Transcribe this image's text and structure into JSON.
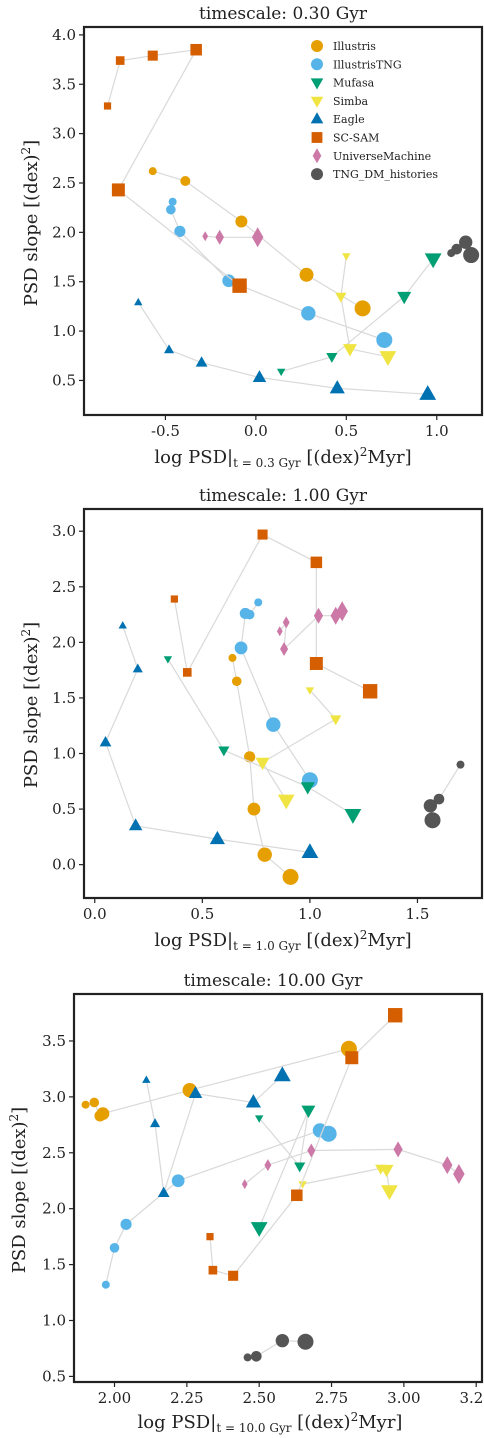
{
  "colors": {
    "Illustris": "#E69F00",
    "IllustrisTNG": "#56B4E9",
    "Mufasa": "#009E73",
    "Simba": "#F0E442",
    "Eagle": "#0072B2",
    "SC-SAM": "#D55E00",
    "UniverseMachine": "#CC79A7",
    "TNG_DM_histories": "#555555",
    "line": "#d9d9d9",
    "frame": "#222222"
  },
  "markers": {
    "Illustris": "circle",
    "IllustrisTNG": "circle",
    "Mufasa": "triangle-down",
    "Simba": "triangle-down",
    "Eagle": "triangle-up",
    "SC-SAM": "square",
    "UniverseMachine": "diamond",
    "TNG_DM_histories": "circle"
  },
  "chart_data": [
    {
      "type": "scatter",
      "title": "timescale: 0.30 Gyr",
      "xlabel_parts": [
        "log PSD|",
        "t = 0.3 Gyr",
        " [(dex)",
        "2",
        "Myr]"
      ],
      "ylabel_parts": [
        "PSD slope [(dex)",
        "2",
        "]"
      ],
      "xlim": [
        -0.95,
        1.25
      ],
      "ylim": [
        0.15,
        4.08
      ],
      "xticks": [
        -0.5,
        0.0,
        0.5,
        1.0
      ],
      "yticks": [
        0.5,
        1.0,
        1.5,
        2.0,
        2.5,
        3.0,
        3.5,
        4.0
      ],
      "legend_location": "top-right",
      "legend": [
        "Illustris",
        "IllustrisTNG",
        "Mufasa",
        "Simba",
        "Eagle",
        "SC-SAM",
        "UniverseMachine",
        "TNG_DM_histories"
      ],
      "series": [
        {
          "name": "Illustris",
          "x": [
            -0.57,
            -0.39,
            -0.08,
            0.28,
            0.59
          ],
          "y": [
            2.62,
            2.52,
            2.11,
            1.57,
            1.23
          ]
        },
        {
          "name": "IllustrisTNG",
          "x": [
            -0.46,
            -0.47,
            -0.42,
            -0.15,
            0.29,
            0.71
          ],
          "y": [
            2.31,
            2.23,
            2.01,
            1.51,
            1.18,
            0.91
          ]
        },
        {
          "name": "Mufasa",
          "x": [
            0.14,
            0.42,
            0.82,
            0.98
          ],
          "y": [
            0.59,
            0.74,
            1.35,
            1.73
          ]
        },
        {
          "name": "Simba",
          "x": [
            0.5,
            0.47,
            0.52,
            0.73
          ],
          "y": [
            1.76,
            1.35,
            0.82,
            0.74
          ]
        },
        {
          "name": "Eagle",
          "x": [
            -0.65,
            -0.48,
            -0.3,
            0.02,
            0.45,
            0.95
          ],
          "y": [
            1.29,
            0.81,
            0.68,
            0.53,
            0.42,
            0.36
          ]
        },
        {
          "name": "SC-SAM",
          "x": [
            -0.82,
            -0.75,
            -0.57,
            -0.33,
            -0.76,
            -0.09
          ],
          "y": [
            3.28,
            3.74,
            3.79,
            3.85,
            2.43,
            1.46
          ]
        },
        {
          "name": "UniverseMachine",
          "x": [
            -0.28,
            -0.2,
            0.01
          ],
          "y": [
            1.96,
            1.95,
            1.95
          ]
        },
        {
          "name": "TNG_DM_histories",
          "x": [
            1.08,
            1.11,
            1.16,
            1.19
          ],
          "y": [
            1.79,
            1.83,
            1.9,
            1.77
          ]
        }
      ]
    },
    {
      "type": "scatter",
      "title": "timescale: 1.00 Gyr",
      "xlabel_parts": [
        "log PSD|",
        "t = 1.0 Gyr",
        " [(dex)",
        "2",
        "Myr]"
      ],
      "ylabel_parts": [
        "PSD slope [(dex)",
        "2",
        "]"
      ],
      "xlim": [
        -0.05,
        1.8
      ],
      "ylim": [
        -0.3,
        3.2
      ],
      "xticks": [
        0.0,
        0.5,
        1.0,
        1.5
      ],
      "yticks": [
        0.0,
        0.5,
        1.0,
        1.5,
        2.0,
        2.5,
        3.0
      ],
      "series": [
        {
          "name": "Illustris",
          "x": [
            0.64,
            0.66,
            0.72,
            0.74,
            0.79,
            0.91
          ],
          "y": [
            1.86,
            1.65,
            0.97,
            0.5,
            0.09,
            -0.11
          ]
        },
        {
          "name": "IllustrisTNG",
          "x": [
            0.76,
            0.72,
            0.7,
            0.68,
            0.83,
            1.0
          ],
          "y": [
            2.36,
            2.25,
            2.26,
            1.95,
            1.26,
            0.76
          ]
        },
        {
          "name": "Mufasa",
          "x": [
            0.34,
            0.6,
            0.99,
            1.2
          ],
          "y": [
            1.85,
            1.03,
            0.7,
            0.45
          ]
        },
        {
          "name": "Simba",
          "x": [
            1.0,
            1.12,
            0.78,
            0.89
          ],
          "y": [
            1.57,
            1.31,
            0.92,
            0.58
          ]
        },
        {
          "name": "Eagle",
          "x": [
            0.13,
            0.2,
            0.05,
            0.19,
            0.57,
            1.0
          ],
          "y": [
            2.15,
            1.76,
            1.1,
            0.35,
            0.23,
            0.11
          ]
        },
        {
          "name": "SC-SAM",
          "x": [
            0.37,
            0.43,
            0.78,
            1.03,
            1.03,
            1.28
          ],
          "y": [
            2.39,
            1.73,
            2.97,
            2.72,
            1.81,
            1.56
          ]
        },
        {
          "name": "UniverseMachine",
          "x": [
            0.86,
            0.89,
            0.88,
            1.04,
            1.12,
            1.15
          ],
          "y": [
            2.1,
            2.18,
            1.94,
            2.24,
            2.24,
            2.28
          ]
        },
        {
          "name": "TNG_DM_histories",
          "x": [
            1.7,
            1.6,
            1.56,
            1.57
          ],
          "y": [
            0.9,
            0.59,
            0.53,
            0.4
          ]
        }
      ]
    },
    {
      "type": "scatter",
      "title": "timescale: 10.00 Gyr",
      "xlabel_parts": [
        "log PSD|",
        "t = 10.0 Gyr",
        " [(dex)",
        "2",
        "Myr]"
      ],
      "ylabel_parts": [
        "PSD slope [(dex)",
        "2",
        "]"
      ],
      "xlim": [
        1.86,
        3.27
      ],
      "ylim": [
        0.45,
        3.92
      ],
      "xticks": [
        2.0,
        2.25,
        2.5,
        2.75,
        3.0,
        3.25
      ],
      "yticks": [
        0.5,
        1.0,
        1.5,
        2.0,
        2.5,
        3.0,
        3.5
      ],
      "series": [
        {
          "name": "Illustris",
          "x": [
            1.9,
            1.93,
            1.95,
            1.96,
            2.26,
            2.81
          ],
          "y": [
            2.93,
            2.95,
            2.83,
            2.85,
            3.06,
            3.43
          ]
        },
        {
          "name": "IllustrisTNG",
          "x": [
            1.97,
            2.0,
            2.04,
            2.22,
            2.71,
            2.74
          ],
          "y": [
            1.32,
            1.65,
            1.86,
            2.25,
            2.7,
            2.67
          ]
        },
        {
          "name": "Mufasa",
          "x": [
            2.5,
            2.64,
            2.67,
            2.5
          ],
          "y": [
            2.81,
            2.38,
            2.88,
            1.83
          ]
        },
        {
          "name": "Simba",
          "x": [
            2.65,
            2.92,
            2.94,
            2.95
          ],
          "y": [
            2.22,
            2.36,
            2.35,
            2.16
          ]
        },
        {
          "name": "Eagle",
          "x": [
            2.11,
            2.14,
            2.17,
            2.28,
            2.48,
            2.58
          ],
          "y": [
            3.15,
            2.76,
            2.14,
            3.03,
            2.95,
            3.19
          ]
        },
        {
          "name": "SC-SAM",
          "x": [
            2.33,
            2.34,
            2.41,
            2.63,
            2.82,
            2.97
          ],
          "y": [
            1.75,
            1.45,
            1.4,
            2.12,
            3.35,
            3.73
          ]
        },
        {
          "name": "UniverseMachine",
          "x": [
            2.45,
            2.53,
            2.68,
            2.98,
            3.15,
            3.19
          ],
          "y": [
            2.22,
            2.39,
            2.52,
            2.53,
            2.39,
            2.31
          ]
        },
        {
          "name": "TNG_DM_histories",
          "x": [
            2.46,
            2.49,
            2.58,
            2.66
          ],
          "y": [
            0.67,
            0.68,
            0.82,
            0.81
          ]
        }
      ]
    }
  ]
}
